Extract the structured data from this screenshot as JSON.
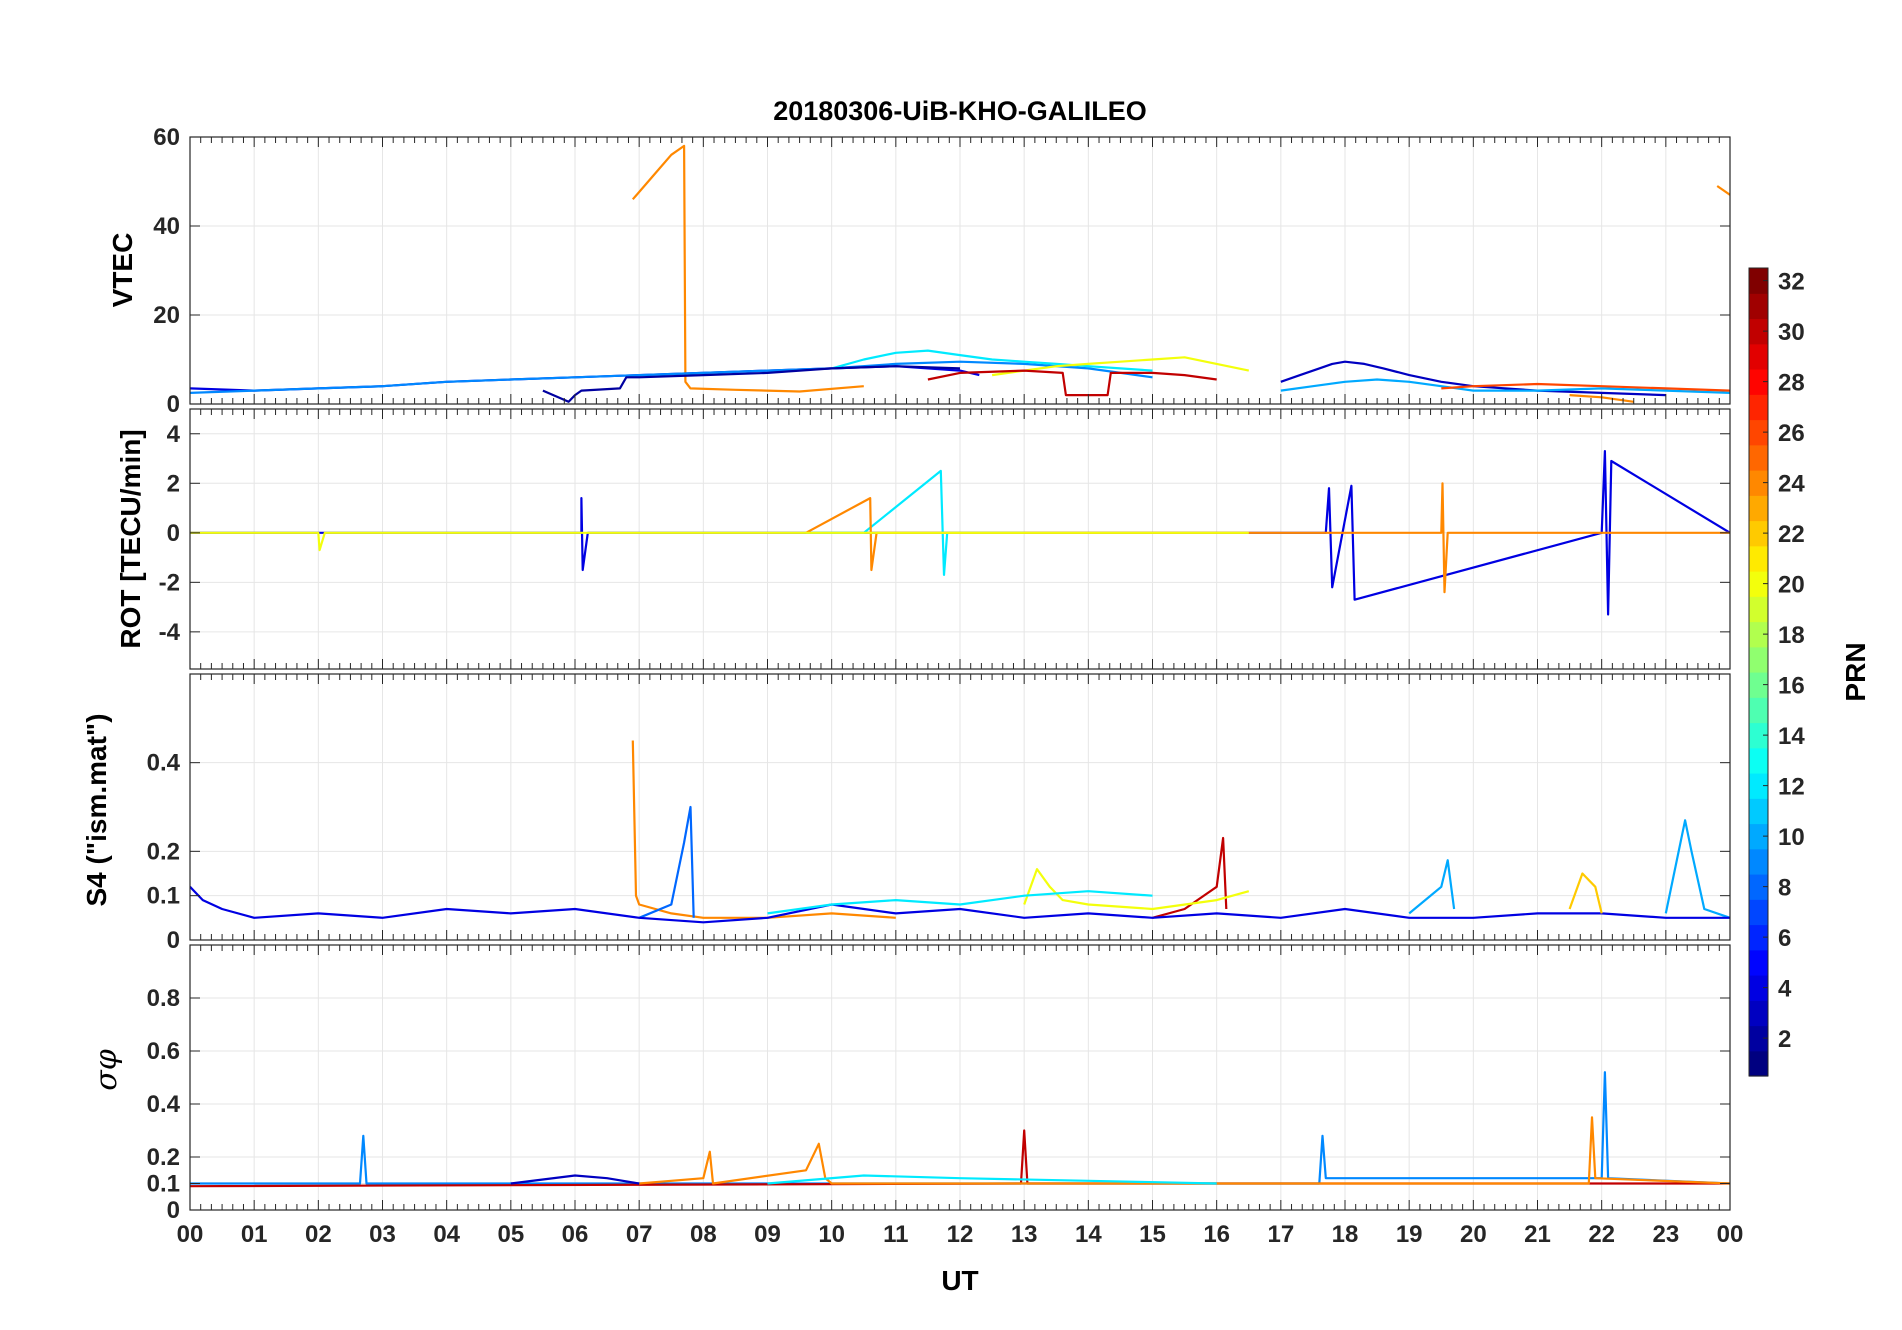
{
  "chart_data": {
    "type": "line",
    "title": "20180306-UiB-KHO-GALILEO",
    "xlabel": "UT",
    "x_ticks": [
      "00",
      "01",
      "02",
      "03",
      "04",
      "05",
      "06",
      "07",
      "08",
      "09",
      "10",
      "11",
      "12",
      "13",
      "14",
      "15",
      "16",
      "17",
      "18",
      "19",
      "20",
      "21",
      "22",
      "23",
      "00"
    ],
    "xlim": [
      0,
      24
    ],
    "grid": true,
    "colorbar": {
      "label": "PRN",
      "colormap": "jet",
      "range": [
        1,
        32
      ],
      "ticks": [
        "2",
        "4",
        "6",
        "8",
        "10",
        "12",
        "14",
        "16",
        "18",
        "20",
        "22",
        "24",
        "26",
        "28",
        "30",
        "32"
      ],
      "placement": "right"
    },
    "panels": [
      {
        "id": "vtec",
        "ylabel": "VTEC",
        "ylim": [
          0,
          60
        ],
        "y_ticks": [
          0,
          20,
          40,
          60
        ],
        "series": [
          {
            "prn": 24,
            "x": [
              6.9,
              7.2,
              7.5,
              7.7,
              7.72,
              7.8,
              8.5,
              9.5,
              10.5
            ],
            "y": [
              46,
              51,
              56,
              58,
              5,
              3.5,
              3.2,
              2.8,
              4
            ]
          },
          {
            "prn": 4,
            "x": [
              0.0,
              1.0,
              2.0,
              3.0,
              4.0,
              5.0,
              6.0,
              7.0,
              8.0,
              9.0,
              10.0,
              11.0,
              12.0,
              12.3
            ],
            "y": [
              3.5,
              3.0,
              3.5,
              4.0,
              5.0,
              5.5,
              6.0,
              6.5,
              7.0,
              7.5,
              8.0,
              8.5,
              7.5,
              6.5
            ]
          },
          {
            "prn": 9,
            "x": [
              0.0,
              1.0,
              2.0,
              3.0,
              4.0,
              5.0,
              6.0,
              7.0,
              8.0,
              9.0,
              10.0,
              11.0,
              12.0,
              13.0,
              14.0,
              15.0
            ],
            "y": [
              2.5,
              3.0,
              3.5,
              4.0,
              5.0,
              5.5,
              6.0,
              6.5,
              7.0,
              7.5,
              8.0,
              9.0,
              9.5,
              9.0,
              8.0,
              6.0
            ]
          },
          {
            "prn": 12,
            "x": [
              10.0,
              10.5,
              11.0,
              11.5,
              12.0,
              12.5,
              13.0,
              13.5,
              14.0,
              14.5,
              15.0
            ],
            "y": [
              8.0,
              10.0,
              11.5,
              12.0,
              11.0,
              10.0,
              9.5,
              9.0,
              8.5,
              8.0,
              7.5
            ]
          },
          {
            "prn": 20,
            "x": [
              12.5,
              13.0,
              13.5,
              14.0,
              14.5,
              15.0,
              15.5,
              16.0,
              16.5
            ],
            "y": [
              6.5,
              7.5,
              8.5,
              9.0,
              9.5,
              10.0,
              10.5,
              9.0,
              7.5
            ]
          },
          {
            "prn": 30,
            "x": [
              11.5,
              12.0,
              13.0,
              13.6,
              13.65,
              14.3,
              14.35,
              15.0,
              15.5,
              16.0
            ],
            "y": [
              5.5,
              7.0,
              7.5,
              7.0,
              2.0,
              2.0,
              7.0,
              7.0,
              6.5,
              5.5
            ]
          },
          {
            "prn": 2,
            "x": [
              5.5,
              5.9,
              6.0,
              6.1,
              6.7,
              6.8,
              7.0,
              8.0,
              9.0,
              10.0,
              11.0,
              12.0
            ],
            "y": [
              3.0,
              0.5,
              2.0,
              3.0,
              3.5,
              6.0,
              6.0,
              6.5,
              7.0,
              8.0,
              8.5,
              8.0
            ]
          },
          {
            "prn": 3,
            "x": [
              17.0,
              17.3,
              17.6,
              17.8,
              18.0,
              18.3,
              18.6,
              19.0,
              19.5,
              20.0,
              21.0,
              22.0,
              23.0
            ],
            "y": [
              5.0,
              6.5,
              8.0,
              9.0,
              9.5,
              9.0,
              8.0,
              6.5,
              5.0,
              4.0,
              3.0,
              2.5,
              2.0
            ]
          },
          {
            "prn": 10,
            "x": [
              17.0,
              17.5,
              18.0,
              18.5,
              19.0,
              19.5,
              20.0,
              21.0,
              22.0,
              23.0,
              24.0
            ],
            "y": [
              3.0,
              4.0,
              5.0,
              5.5,
              5.0,
              4.0,
              3.0,
              3.0,
              3.5,
              3.0,
              2.5
            ]
          },
          {
            "prn": 26,
            "x": [
              19.5,
              20.0,
              21.0,
              22.0,
              23.0,
              24.0
            ],
            "y": [
              3.5,
              4.0,
              4.5,
              4.0,
              3.5,
              3.0
            ]
          },
          {
            "prn": 24,
            "x": [
              21.5,
              22.0,
              22.5
            ],
            "y": [
              2.0,
              1.5,
              0.5
            ]
          },
          {
            "prn": 24,
            "x": [
              23.8,
              24.0
            ],
            "y": [
              49.0,
              47.0
            ]
          }
        ]
      },
      {
        "id": "rot",
        "ylabel": "ROT [TECU/min]",
        "ylim": [
          -5.5,
          5
        ],
        "y_ticks": [
          -4,
          -2,
          0,
          2,
          4
        ],
        "series": [
          {
            "prn": 4,
            "x": [
              0.0,
              6.1,
              6.1,
              6.12,
              6.2,
              17.7,
              17.75,
              17.8,
              18.1,
              18.15,
              22.0,
              22.05,
              22.1,
              22.15,
              24.0
            ],
            "y": [
              0.0,
              0.0,
              1.4,
              -1.5,
              0.0,
              0.0,
              1.8,
              -2.2,
              1.9,
              -2.7,
              0.0,
              3.3,
              -3.3,
              2.9,
              0.0
            ]
          },
          {
            "prn": 12,
            "x": [
              9.6,
              10.5,
              11.7,
              11.75,
              11.8,
              13.0
            ],
            "y": [
              0.0,
              0.0,
              2.5,
              -1.7,
              0.0,
              0.0
            ]
          },
          {
            "prn": 24,
            "x": [
              9.6,
              10.6,
              10.62,
              10.7,
              19.5,
              19.52,
              19.55,
              19.6,
              24.0
            ],
            "y": [
              0.0,
              1.4,
              -1.5,
              0.0,
              0.0,
              2.0,
              -2.4,
              0.0,
              0.0
            ]
          },
          {
            "prn": 20,
            "x": [
              0.0,
              2.0,
              2.02,
              2.1,
              16.5
            ],
            "y": [
              0.0,
              0.0,
              -0.7,
              0.0,
              0.0
            ]
          }
        ]
      },
      {
        "id": "s4",
        "ylabel": "S4 (\"ism.mat\")",
        "ylim": [
          0,
          0.6
        ],
        "y_ticks": [
          0,
          0.1,
          0.2,
          0.4
        ],
        "series": [
          {
            "prn": 24,
            "x": [
              6.9,
              6.95,
              7.0,
              7.5,
              8.0,
              9.0,
              10.0,
              11.0
            ],
            "y": [
              0.45,
              0.1,
              0.08,
              0.06,
              0.05,
              0.05,
              0.06,
              0.05
            ]
          },
          {
            "prn": 8,
            "x": [
              7.0,
              7.5,
              7.7,
              7.8,
              7.85
            ],
            "y": [
              0.05,
              0.08,
              0.22,
              0.3,
              0.05
            ]
          },
          {
            "prn": 10,
            "x": [
              19.0,
              19.5,
              19.6,
              19.7
            ],
            "y": [
              0.06,
              0.12,
              0.18,
              0.07
            ]
          },
          {
            "prn": 10,
            "x": [
              23.0,
              23.3,
              23.4,
              23.6,
              24.0
            ],
            "y": [
              0.06,
              0.27,
              0.2,
              0.07,
              0.05
            ]
          },
          {
            "prn": 30,
            "x": [
              15.0,
              15.5,
              16.0,
              16.1,
              16.15
            ],
            "y": [
              0.05,
              0.07,
              0.12,
              0.23,
              0.07
            ]
          },
          {
            "prn": 4,
            "x": [
              0.0,
              0.2,
              0.5,
              1.0,
              2.0,
              3.0,
              4.0,
              5.0,
              6.0,
              7.0,
              8.0,
              9.0,
              10.0,
              11.0,
              12.0,
              13.0,
              14.0,
              15.0,
              16.0,
              17.0,
              18.0,
              19.0,
              20.0,
              21.0,
              22.0,
              23.0,
              24.0
            ],
            "y": [
              0.12,
              0.09,
              0.07,
              0.05,
              0.06,
              0.05,
              0.07,
              0.06,
              0.07,
              0.05,
              0.04,
              0.05,
              0.08,
              0.06,
              0.07,
              0.05,
              0.06,
              0.05,
              0.06,
              0.05,
              0.07,
              0.05,
              0.05,
              0.06,
              0.06,
              0.05,
              0.05
            ]
          },
          {
            "prn": 20,
            "x": [
              13.0,
              13.2,
              13.4,
              13.6,
              14.0,
              15.0,
              16.0,
              16.5
            ],
            "y": [
              0.08,
              0.16,
              0.12,
              0.09,
              0.08,
              0.07,
              0.09,
              0.11
            ]
          },
          {
            "prn": 12,
            "x": [
              9.0,
              10.0,
              11.0,
              12.0,
              13.0,
              14.0,
              15.0
            ],
            "y": [
              0.06,
              0.08,
              0.09,
              0.08,
              0.1,
              0.11,
              0.1
            ]
          },
          {
            "prn": 22,
            "x": [
              21.5,
              21.7,
              21.9,
              22.0
            ],
            "y": [
              0.07,
              0.15,
              0.12,
              0.06
            ]
          }
        ]
      },
      {
        "id": "sigma_phi",
        "ylabel": "σφ",
        "ylim": [
          0,
          1
        ],
        "y_ticks": [
          0,
          0.1,
          0.2,
          0.4,
          0.6,
          0.8
        ],
        "series": [
          {
            "prn": 9,
            "x": [
              0.0,
              2.65,
              2.7,
              2.75,
              6.0,
              9.0,
              17.6,
              17.65,
              17.7,
              22.0,
              22.05,
              22.1,
              24.0
            ],
            "y": [
              0.1,
              0.1,
              0.28,
              0.1,
              0.1,
              0.1,
              0.1,
              0.28,
              0.12,
              0.12,
              0.52,
              0.12,
              0.1
            ]
          },
          {
            "prn": 30,
            "x": [
              0.0,
              12.95,
              13.0,
              13.05,
              24.0
            ],
            "y": [
              0.09,
              0.1,
              0.3,
              0.1,
              0.1
            ]
          },
          {
            "prn": 24,
            "x": [
              7.0,
              8.0,
              8.1,
              8.15,
              9.6,
              9.8,
              9.9,
              10.0,
              21.8,
              21.85,
              21.9,
              24.0
            ],
            "y": [
              0.1,
              0.12,
              0.22,
              0.1,
              0.15,
              0.25,
              0.12,
              0.1,
              0.1,
              0.35,
              0.12,
              0.1
            ]
          },
          {
            "prn": 12,
            "x": [
              9.0,
              10.5,
              12.0,
              14.0,
              16.0
            ],
            "y": [
              0.1,
              0.13,
              0.12,
              0.11,
              0.1
            ]
          },
          {
            "prn": 3,
            "x": [
              5.0,
              6.0,
              6.5,
              7.0
            ],
            "y": [
              0.1,
              0.13,
              0.12,
              0.1
            ]
          }
        ]
      }
    ]
  }
}
